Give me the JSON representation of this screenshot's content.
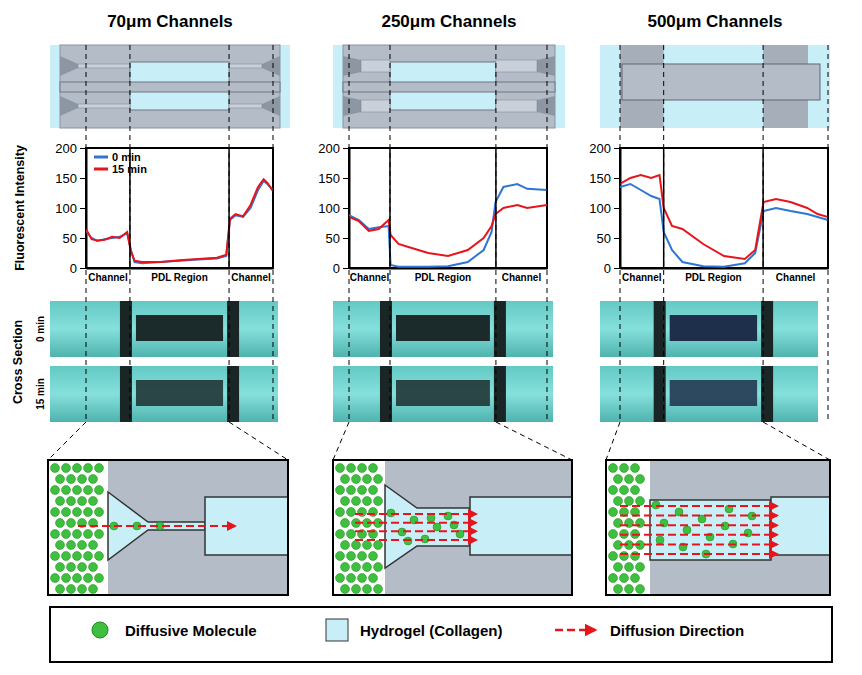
{
  "chart_data": [
    {
      "type": "line",
      "title": "70μm Channels",
      "ylabel": "Fluorescent Intensity",
      "x": [
        0,
        3,
        6,
        10,
        14,
        18,
        22,
        24,
        26,
        30,
        40,
        50,
        60,
        70,
        75,
        77,
        80,
        84,
        88,
        92,
        95,
        97,
        100
      ],
      "series": [
        {
          "name": "0 min",
          "color": "#2e75d4",
          "values": [
            62,
            50,
            45,
            48,
            50,
            52,
            58,
            30,
            10,
            8,
            10,
            12,
            14,
            16,
            20,
            80,
            88,
            85,
            100,
            130,
            145,
            140,
            130
          ]
        },
        {
          "name": "15 min",
          "color": "#e8141b",
          "values": [
            65,
            48,
            46,
            47,
            52,
            50,
            60,
            28,
            12,
            10,
            10,
            13,
            15,
            17,
            22,
            82,
            90,
            86,
            105,
            135,
            148,
            142,
            128
          ]
        }
      ],
      "xlim": [
        0,
        100
      ],
      "ylim": [
        0,
        200
      ],
      "yticks": [
        0,
        50,
        100,
        150,
        200
      ],
      "tick_labels": "y",
      "legend": "top-left",
      "regions": [
        {
          "label": "Channel",
          "start": 0,
          "end": 23.5
        },
        {
          "label": "PDL Region",
          "start": 23.5,
          "end": 76.5
        },
        {
          "label": "Channel",
          "start": 76.5,
          "end": 100
        }
      ]
    },
    {
      "type": "line",
      "title": "250μm Channels",
      "x": [
        0,
        5,
        10,
        15,
        20,
        21,
        25,
        30,
        40,
        50,
        60,
        68,
        72,
        74,
        78,
        85,
        90,
        100
      ],
      "series": [
        {
          "name": "0 min",
          "color": "#2e75d4",
          "values": [
            88,
            80,
            65,
            68,
            70,
            5,
            2,
            2,
            2,
            3,
            10,
            30,
            60,
            110,
            135,
            140,
            132,
            130
          ]
        },
        {
          "name": "15 min",
          "color": "#e8141b",
          "values": [
            85,
            78,
            62,
            65,
            80,
            55,
            40,
            35,
            25,
            20,
            30,
            50,
            70,
            90,
            100,
            105,
            100,
            105
          ]
        }
      ],
      "xlim": [
        0,
        100
      ],
      "ylim": [
        0,
        200
      ],
      "yticks": [
        0,
        50,
        100,
        150,
        200
      ],
      "tick_labels": "y",
      "regions": [
        {
          "label": "Channel",
          "start": 0,
          "end": 20.7
        },
        {
          "label": "PDL Region",
          "start": 20.7,
          "end": 74.2
        },
        {
          "label": "Channel",
          "start": 74.2,
          "end": 100
        }
      ]
    },
    {
      "type": "line",
      "title": "500μm Channels",
      "x": [
        0,
        5,
        10,
        15,
        19,
        21,
        25,
        30,
        40,
        50,
        60,
        65,
        69,
        75,
        82,
        90,
        95,
        100
      ],
      "series": [
        {
          "name": "0 min",
          "color": "#2e75d4",
          "values": [
            135,
            140,
            130,
            120,
            115,
            60,
            30,
            10,
            3,
            2,
            8,
            25,
            95,
            100,
            95,
            90,
            85,
            80
          ]
        },
        {
          "name": "15 min",
          "color": "#e8141b",
          "values": [
            140,
            150,
            155,
            150,
            155,
            100,
            70,
            65,
            40,
            20,
            15,
            30,
            110,
            115,
            110,
            100,
            90,
            85
          ]
        }
      ],
      "xlim": [
        0,
        100
      ],
      "ylim": [
        0,
        200
      ],
      "yticks": [
        0,
        50,
        100,
        150,
        200
      ],
      "tick_labels": "y",
      "regions": [
        {
          "label": "Channel",
          "start": 0,
          "end": 21
        },
        {
          "label": "PDL Region",
          "start": 21,
          "end": 68.8
        },
        {
          "label": "Channel",
          "start": 68.8,
          "end": 100
        }
      ]
    }
  ],
  "figure": {
    "row_label": "Cross Section",
    "photo_labels": [
      "0 min",
      "15 min"
    ],
    "key": [
      "Diffusive Molecule",
      "Hydrogel (Collagen)",
      "Diffusion Direction"
    ]
  }
}
